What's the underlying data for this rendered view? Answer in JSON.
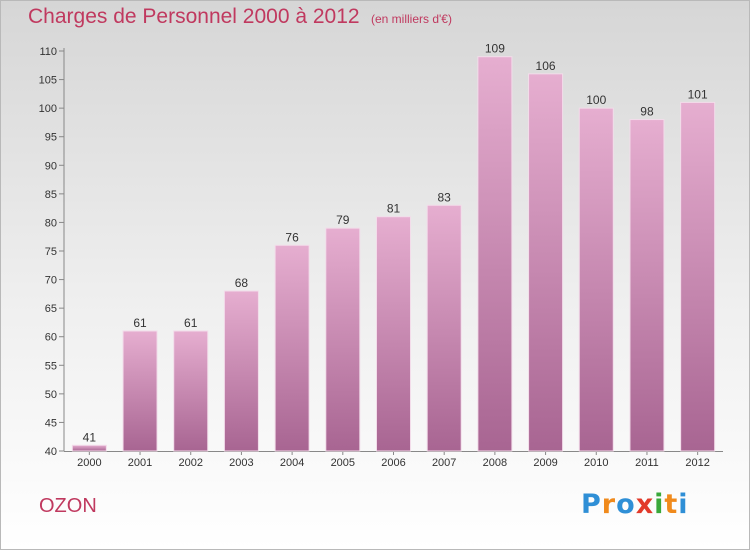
{
  "header": {
    "title": "Charges de Personnel 2000 à 2012",
    "subtitle": "(en milliers d'€)"
  },
  "footer": {
    "city": "OZON",
    "logo": "Proxiti"
  },
  "colors": {
    "title": "#c0395f",
    "bar_top": "#e6aed0",
    "bar_bottom": "#a86592"
  },
  "chart_data": {
    "type": "bar",
    "title": "Charges de Personnel 2000 à 2012",
    "subtitle": "(en milliers d'€)",
    "categories": [
      "2000",
      "2001",
      "2002",
      "2003",
      "2004",
      "2005",
      "2006",
      "2007",
      "2008",
      "2009",
      "2010",
      "2011",
      "2012"
    ],
    "values": [
      41,
      61,
      61,
      68,
      76,
      79,
      81,
      83,
      109,
      106,
      100,
      98,
      101
    ],
    "ylim": [
      40,
      110
    ],
    "yticks": [
      40,
      45,
      50,
      55,
      60,
      65,
      70,
      75,
      80,
      85,
      90,
      95,
      100,
      105,
      110
    ],
    "grid": false,
    "legend": "none"
  }
}
